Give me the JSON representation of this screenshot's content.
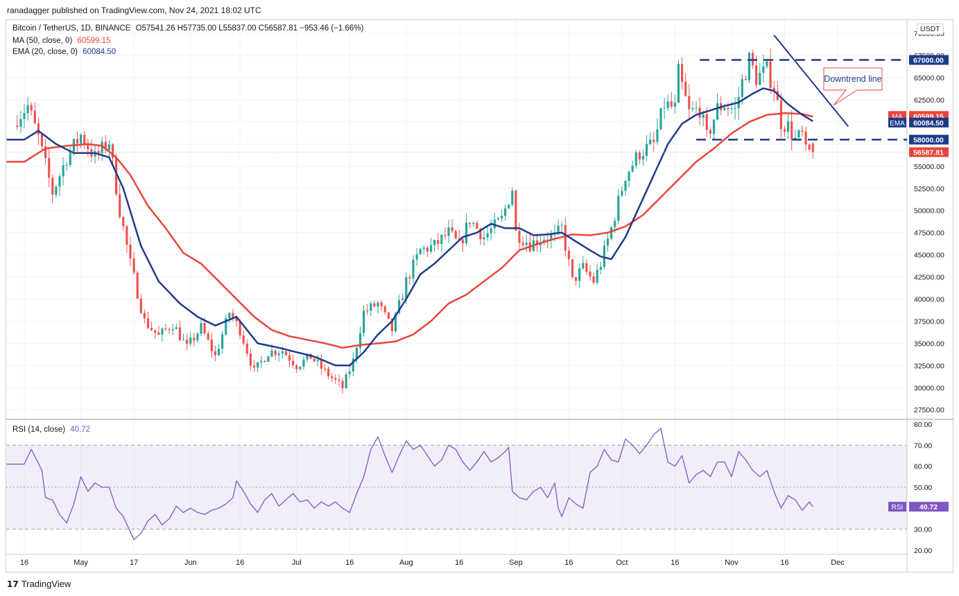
{
  "header": {
    "publisher": "ranadagger published on TradingView.com, Nov 24, 2021 18:02 UTC"
  },
  "legend": {
    "symbol": "Bitcoin / TetherUS, 1D, BINANCE",
    "ohlc": "O57541.26  H57735.00  L55837.00  C56587.81  −953.46 (−1.66%)",
    "ma_label": "MA (50, close, 0)",
    "ma_value": "60599.15",
    "ema_label": "EMA (20, close, 0)",
    "ema_value": "60084.50",
    "rsi_label": "RSI (14, close)",
    "rsi_value": "40.72"
  },
  "unit_button": "USDT",
  "annotation": "Downtrend line",
  "footer": {
    "brand": "TradingView",
    "logo": "17"
  },
  "colors": {
    "up": "#26a69a",
    "down": "#ef5350",
    "ma": "#e8453c",
    "ema": "#1e3a8a",
    "rsi": "#7e57c2",
    "annot": "#1e3a8a"
  },
  "chart_data": {
    "type": "candlestick",
    "price_axis": {
      "ylim": [
        26500,
        71500
      ],
      "ticks": [
        27500,
        30000,
        32500,
        35000,
        37500,
        40000,
        42500,
        45000,
        47500,
        50000,
        52500,
        55000,
        57500,
        60000,
        62500,
        65000,
        67500,
        70000
      ],
      "tick_labels": [
        "27500.00",
        "30000.00",
        "32500.00",
        "35000.00",
        "37500.00",
        "40000.00",
        "42500.00",
        "45000.00",
        "47500.00",
        "50000.00",
        "52500.00",
        "55000.00",
        "",
        "",
        "62500.00",
        "65000.00",
        "67500.00",
        "70000.00"
      ]
    },
    "rsi_axis": {
      "ylim": [
        18,
        82
      ],
      "ticks": [
        20,
        30,
        40,
        50,
        60,
        70,
        80
      ],
      "tick_labels": [
        "20.00",
        "30.00",
        "40.00",
        "50.00",
        "60.00",
        "70.00",
        "80.00"
      ],
      "band": [
        30,
        70
      ]
    },
    "x_ticks": [
      {
        "d": 0,
        "label": "16"
      },
      {
        "d": 16,
        "label": "May"
      },
      {
        "d": 31,
        "label": "17"
      },
      {
        "d": 47,
        "label": "Jun"
      },
      {
        "d": 61,
        "label": "16"
      },
      {
        "d": 77,
        "label": "Jul"
      },
      {
        "d": 92,
        "label": "16"
      },
      {
        "d": 108,
        "label": "Aug"
      },
      {
        "d": 123,
        "label": "16"
      },
      {
        "d": 139,
        "label": "Sep"
      },
      {
        "d": 154,
        "label": "16"
      },
      {
        "d": 169,
        "label": "Oct"
      },
      {
        "d": 184,
        "label": "16"
      },
      {
        "d": 200,
        "label": "Nov"
      },
      {
        "d": 215,
        "label": "16"
      },
      {
        "d": 230,
        "label": "Dec"
      }
    ],
    "close_anchors": [
      [
        0,
        60500
      ],
      [
        3,
        61800
      ],
      [
        6,
        58200
      ],
      [
        10,
        52000
      ],
      [
        14,
        56000
      ],
      [
        18,
        58500
      ],
      [
        22,
        56000
      ],
      [
        26,
        57800
      ],
      [
        29,
        50000
      ],
      [
        32,
        44000
      ],
      [
        36,
        37500
      ],
      [
        40,
        35800
      ],
      [
        44,
        37200
      ],
      [
        48,
        34500
      ],
      [
        52,
        36800
      ],
      [
        56,
        33500
      ],
      [
        60,
        38500
      ],
      [
        63,
        36500
      ],
      [
        67,
        31800
      ],
      [
        71,
        34000
      ],
      [
        75,
        34200
      ],
      [
        79,
        32500
      ],
      [
        83,
        33500
      ],
      [
        87,
        31800
      ],
      [
        92,
        30000
      ],
      [
        95,
        33000
      ],
      [
        98,
        38500
      ],
      [
        102,
        39500
      ],
      [
        106,
        36500
      ],
      [
        110,
        42000
      ],
      [
        114,
        45500
      ],
      [
        118,
        46000
      ],
      [
        122,
        47500
      ],
      [
        125,
        46000
      ],
      [
        128,
        49000
      ],
      [
        132,
        47000
      ],
      [
        137,
        49000
      ],
      [
        140,
        52500
      ],
      [
        141,
        47500
      ],
      [
        145,
        46200
      ],
      [
        149,
        47000
      ],
      [
        152,
        47000
      ],
      [
        154,
        48000
      ],
      [
        157,
        42000
      ],
      [
        160,
        43500
      ],
      [
        163,
        42000
      ],
      [
        165,
        44000
      ],
      [
        168,
        48000
      ],
      [
        172,
        54000
      ],
      [
        176,
        56500
      ],
      [
        180,
        57500
      ],
      [
        183,
        62000
      ],
      [
        186,
        61500
      ],
      [
        187,
        65500
      ],
      [
        190,
        61000
      ],
      [
        193,
        61500
      ],
      [
        195,
        58200
      ],
      [
        198,
        61500
      ],
      [
        200,
        62000
      ],
      [
        203,
        61300
      ],
      [
        205,
        64500
      ],
      [
        207,
        67000
      ],
      [
        209,
        65000
      ],
      [
        212,
        65800
      ],
      [
        214,
        64000
      ],
      [
        216,
        60000
      ],
      [
        218,
        59500
      ],
      [
        220,
        58000
      ],
      [
        222,
        58500
      ],
      [
        223,
        56500
      ],
      [
        225,
        56600
      ]
    ],
    "rsi_anchors": [
      [
        0,
        61
      ],
      [
        2,
        68
      ],
      [
        5,
        58
      ],
      [
        6,
        45
      ],
      [
        8,
        44
      ],
      [
        10,
        37
      ],
      [
        12,
        33
      ],
      [
        14,
        42
      ],
      [
        16,
        55
      ],
      [
        18,
        48
      ],
      [
        20,
        52
      ],
      [
        22,
        50
      ],
      [
        24,
        50
      ],
      [
        26,
        40
      ],
      [
        28,
        36
      ],
      [
        31,
        25
      ],
      [
        33,
        28
      ],
      [
        35,
        34
      ],
      [
        37,
        37
      ],
      [
        39,
        32
      ],
      [
        41,
        35
      ],
      [
        43,
        41
      ],
      [
        45,
        38
      ],
      [
        47,
        40
      ],
      [
        49,
        38
      ],
      [
        51,
        37
      ],
      [
        53,
        39
      ],
      [
        55,
        40
      ],
      [
        57,
        42
      ],
      [
        59,
        45
      ],
      [
        60,
        53
      ],
      [
        62,
        48
      ],
      [
        64,
        42
      ],
      [
        66,
        38
      ],
      [
        68,
        44
      ],
      [
        70,
        47
      ],
      [
        72,
        41
      ],
      [
        74,
        44
      ],
      [
        76,
        47
      ],
      [
        78,
        43
      ],
      [
        80,
        44
      ],
      [
        82,
        40
      ],
      [
        84,
        43
      ],
      [
        86,
        41
      ],
      [
        88,
        43
      ],
      [
        90,
        40
      ],
      [
        92,
        38
      ],
      [
        94,
        47
      ],
      [
        96,
        55
      ],
      [
        98,
        68
      ],
      [
        100,
        74
      ],
      [
        102,
        65
      ],
      [
        104,
        57
      ],
      [
        106,
        65
      ],
      [
        108,
        72
      ],
      [
        110,
        68
      ],
      [
        112,
        70
      ],
      [
        114,
        65
      ],
      [
        116,
        60
      ],
      [
        118,
        63
      ],
      [
        120,
        70
      ],
      [
        122,
        68
      ],
      [
        124,
        62
      ],
      [
        126,
        58
      ],
      [
        128,
        62
      ],
      [
        130,
        67
      ],
      [
        132,
        62
      ],
      [
        134,
        64
      ],
      [
        136,
        67
      ],
      [
        137,
        69
      ],
      [
        138,
        48
      ],
      [
        140,
        45
      ],
      [
        142,
        44
      ],
      [
        144,
        48
      ],
      [
        146,
        50
      ],
      [
        148,
        45
      ],
      [
        150,
        52
      ],
      [
        151,
        40
      ],
      [
        152,
        36
      ],
      [
        154,
        45
      ],
      [
        156,
        42
      ],
      [
        158,
        40
      ],
      [
        160,
        57
      ],
      [
        162,
        60
      ],
      [
        164,
        68
      ],
      [
        166,
        63
      ],
      [
        168,
        62
      ],
      [
        170,
        73
      ],
      [
        172,
        70
      ],
      [
        174,
        66
      ],
      [
        176,
        70
      ],
      [
        178,
        75
      ],
      [
        180,
        78
      ],
      [
        182,
        62
      ],
      [
        184,
        60
      ],
      [
        186,
        65
      ],
      [
        188,
        52
      ],
      [
        190,
        56
      ],
      [
        192,
        58
      ],
      [
        194,
        55
      ],
      [
        196,
        62
      ],
      [
        198,
        62
      ],
      [
        200,
        55
      ],
      [
        202,
        67
      ],
      [
        204,
        63
      ],
      [
        206,
        58
      ],
      [
        208,
        55
      ],
      [
        210,
        58
      ],
      [
        212,
        48
      ],
      [
        214,
        40
      ],
      [
        216,
        46
      ],
      [
        218,
        44
      ],
      [
        220,
        39
      ],
      [
        222,
        43
      ],
      [
        223,
        40.72
      ]
    ],
    "ema20_anchors": [
      [
        0,
        58000
      ],
      [
        4,
        59000
      ],
      [
        9,
        57500
      ],
      [
        14,
        56500
      ],
      [
        20,
        56500
      ],
      [
        24,
        56000
      ],
      [
        28,
        52500
      ],
      [
        33,
        46000
      ],
      [
        38,
        42000
      ],
      [
        44,
        39500
      ],
      [
        49,
        38000
      ],
      [
        54,
        37000
      ],
      [
        60,
        38000
      ],
      [
        66,
        35000
      ],
      [
        72,
        34500
      ],
      [
        77,
        34000
      ],
      [
        82,
        33500
      ],
      [
        88,
        32500
      ],
      [
        92,
        32500
      ],
      [
        96,
        34000
      ],
      [
        100,
        36000
      ],
      [
        104,
        37500
      ],
      [
        108,
        40000
      ],
      [
        112,
        42800
      ],
      [
        116,
        44000
      ],
      [
        120,
        45500
      ],
      [
        124,
        47000
      ],
      [
        128,
        47500
      ],
      [
        132,
        48500
      ],
      [
        136,
        48000
      ],
      [
        140,
        48000
      ],
      [
        144,
        47200
      ],
      [
        148,
        47300
      ],
      [
        152,
        47500
      ],
      [
        156,
        46500
      ],
      [
        160,
        45500
      ],
      [
        163,
        44800
      ],
      [
        166,
        44500
      ],
      [
        170,
        47000
      ],
      [
        174,
        50500
      ],
      [
        178,
        54000
      ],
      [
        182,
        57500
      ],
      [
        186,
        59800
      ],
      [
        190,
        60800
      ],
      [
        194,
        61300
      ],
      [
        198,
        61800
      ],
      [
        202,
        62200
      ],
      [
        206,
        63200
      ],
      [
        209,
        63800
      ],
      [
        212,
        63500
      ],
      [
        216,
        62000
      ],
      [
        220,
        60800
      ],
      [
        223,
        60084
      ]
    ],
    "ma50_anchors": [
      [
        0,
        55500
      ],
      [
        6,
        57000
      ],
      [
        12,
        57300
      ],
      [
        18,
        57500
      ],
      [
        22,
        57300
      ],
      [
        26,
        56000
      ],
      [
        30,
        54000
      ],
      [
        35,
        50500
      ],
      [
        40,
        48000
      ],
      [
        45,
        45200
      ],
      [
        50,
        44000
      ],
      [
        55,
        42000
      ],
      [
        60,
        40000
      ],
      [
        65,
        38000
      ],
      [
        70,
        36500
      ],
      [
        75,
        35800
      ],
      [
        80,
        35400
      ],
      [
        85,
        35000
      ],
      [
        90,
        34500
      ],
      [
        95,
        34800
      ],
      [
        100,
        35000
      ],
      [
        105,
        35200
      ],
      [
        110,
        36000
      ],
      [
        115,
        37500
      ],
      [
        120,
        39500
      ],
      [
        125,
        40500
      ],
      [
        130,
        42000
      ],
      [
        135,
        43500
      ],
      [
        140,
        45500
      ],
      [
        145,
        46200
      ],
      [
        150,
        46800
      ],
      [
        155,
        47300
      ],
      [
        160,
        47200
      ],
      [
        165,
        47500
      ],
      [
        170,
        48200
      ],
      [
        175,
        49500
      ],
      [
        180,
        51500
      ],
      [
        185,
        53500
      ],
      [
        190,
        55500
      ],
      [
        195,
        57000
      ],
      [
        200,
        58700
      ],
      [
        205,
        60000
      ],
      [
        210,
        60800
      ],
      [
        215,
        61000
      ],
      [
        220,
        60900
      ],
      [
        223,
        60599
      ]
    ]
  }
}
